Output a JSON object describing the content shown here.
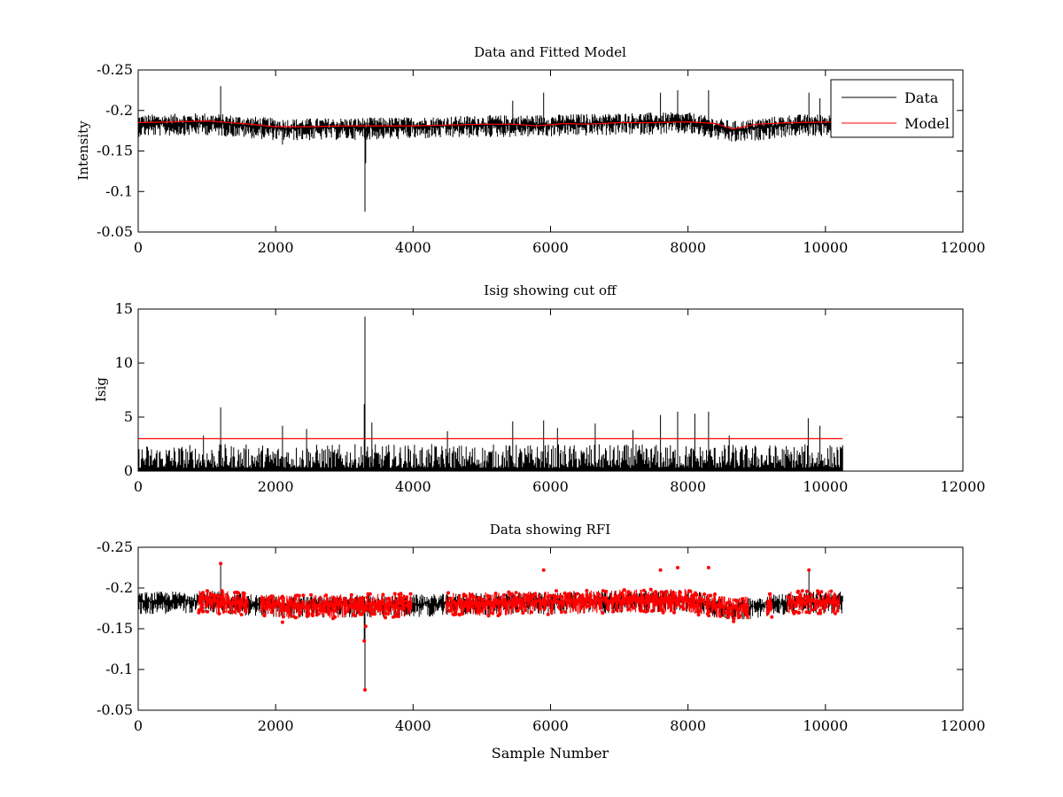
{
  "figure": {
    "background": "#ffffff",
    "data_color": "#000000",
    "highlight_color": "#ff0000"
  },
  "chart_data": [
    {
      "type": "line",
      "title": "Data and Fitted Model",
      "xlabel": "",
      "ylabel": "Intensity",
      "xlim": [
        0,
        12000
      ],
      "ylim": [
        -0.25,
        -0.05
      ],
      "y_reversed": true,
      "xticks": [
        0,
        2000,
        4000,
        6000,
        8000,
        10000,
        12000
      ],
      "yticks": [
        -0.05,
        -0.1,
        -0.15,
        -0.2,
        -0.25
      ],
      "ytick_labels": [
        "-0.05",
        "-0.1",
        "-0.15",
        "-0.2",
        "-0.25"
      ],
      "grid": false,
      "legend": {
        "position": "top-right",
        "entries": [
          "Data",
          "Model"
        ]
      },
      "series": [
        {
          "name": "Data",
          "color": "#000000",
          "x_range": [
            0,
            10250
          ],
          "baseline": [
            [
              0,
              -0.183
            ],
            [
              1000,
              -0.185
            ],
            [
              2100,
              -0.178
            ],
            [
              3000,
              -0.179
            ],
            [
              4000,
              -0.18
            ],
            [
              5000,
              -0.182
            ],
            [
              6000,
              -0.183
            ],
            [
              7000,
              -0.185
            ],
            [
              8000,
              -0.186
            ],
            [
              8650,
              -0.175
            ],
            [
              9500,
              -0.183
            ],
            [
              10250,
              -0.184
            ]
          ],
          "noise_halfwidth": 0.012,
          "spikes": [
            [
              3300,
              -0.075
            ],
            [
              3310,
              -0.135
            ],
            [
              1200,
              -0.23
            ],
            [
              5900,
              -0.222
            ],
            [
              7600,
              -0.222
            ],
            [
              7850,
              -0.225
            ],
            [
              8300,
              -0.225
            ],
            [
              9760,
              -0.222
            ],
            [
              9920,
              -0.215
            ],
            [
              5450,
              -0.212
            ],
            [
              2100,
              -0.158
            ]
          ]
        },
        {
          "name": "Model",
          "color": "#ff0000",
          "points": [
            [
              0,
              -0.185
            ],
            [
              500,
              -0.186
            ],
            [
              1000,
              -0.187
            ],
            [
              1500,
              -0.184
            ],
            [
              2000,
              -0.18
            ],
            [
              2500,
              -0.18
            ],
            [
              3000,
              -0.181
            ],
            [
              3500,
              -0.181
            ],
            [
              4000,
              -0.181
            ],
            [
              4500,
              -0.182
            ],
            [
              5000,
              -0.183
            ],
            [
              5500,
              -0.183
            ],
            [
              5800,
              -0.181
            ],
            [
              6200,
              -0.184
            ],
            [
              6500,
              -0.183
            ],
            [
              7000,
              -0.185
            ],
            [
              7500,
              -0.185
            ],
            [
              8000,
              -0.186
            ],
            [
              8400,
              -0.184
            ],
            [
              8650,
              -0.177
            ],
            [
              9000,
              -0.183
            ],
            [
              9500,
              -0.185
            ],
            [
              10250,
              -0.186
            ]
          ]
        }
      ]
    },
    {
      "type": "line",
      "title": "Isig showing cut off",
      "xlabel": "",
      "ylabel": "Isig",
      "xlim": [
        0,
        12000
      ],
      "ylim": [
        0,
        15
      ],
      "y_reversed": false,
      "xticks": [
        0,
        2000,
        4000,
        6000,
        8000,
        10000,
        12000
      ],
      "yticks": [
        0,
        5,
        10,
        15
      ],
      "ytick_labels": [
        "0",
        "5",
        "10",
        "15"
      ],
      "grid": false,
      "series": [
        {
          "color": "#000000",
          "x_range": [
            0,
            10250
          ],
          "noise_max": 2.2,
          "spikes": [
            [
              3300,
              14.3
            ],
            [
              3290,
              6.2
            ],
            [
              1200,
              5.9
            ],
            [
              2100,
              4.2
            ],
            [
              3400,
              4.5
            ],
            [
              5450,
              4.6
            ],
            [
              5900,
              4.7
            ],
            [
              6650,
              4.4
            ],
            [
              7600,
              5.2
            ],
            [
              7850,
              5.5
            ],
            [
              8100,
              5.3
            ],
            [
              8300,
              5.5
            ],
            [
              9750,
              4.9
            ],
            [
              9920,
              4.2
            ],
            [
              2450,
              3.9
            ],
            [
              4500,
              3.7
            ],
            [
              6100,
              4.0
            ],
            [
              7200,
              3.8
            ],
            [
              8600,
              3.3
            ],
            [
              950,
              3.3
            ]
          ]
        },
        {
          "name": "cut off",
          "color": "#ff0000",
          "points": [
            [
              0,
              3
            ],
            [
              10250,
              3
            ]
          ]
        }
      ]
    },
    {
      "type": "scatter",
      "title": "Data showing RFI",
      "xlabel": "Sample Number",
      "ylabel": "",
      "xlim": [
        0,
        12000
      ],
      "ylim": [
        -0.25,
        -0.05
      ],
      "y_reversed": true,
      "xticks": [
        0,
        2000,
        4000,
        6000,
        8000,
        10000,
        12000
      ],
      "yticks": [
        -0.05,
        -0.1,
        -0.15,
        -0.2,
        -0.25
      ],
      "ytick_labels": [
        "-0.05",
        "-0.1",
        "-0.15",
        "-0.2",
        "-0.25"
      ],
      "grid": false,
      "series": [
        {
          "color": "#000000",
          "x_range": [
            0,
            10250
          ],
          "baseline": [
            [
              0,
              -0.183
            ],
            [
              1000,
              -0.185
            ],
            [
              2100,
              -0.178
            ],
            [
              3000,
              -0.179
            ],
            [
              4000,
              -0.18
            ],
            [
              5000,
              -0.182
            ],
            [
              6000,
              -0.183
            ],
            [
              7000,
              -0.185
            ],
            [
              8000,
              -0.186
            ],
            [
              8650,
              -0.175
            ],
            [
              9500,
              -0.183
            ],
            [
              10250,
              -0.184
            ]
          ],
          "noise_halfwidth": 0.012,
          "spikes": [
            [
              3300,
              -0.075
            ],
            [
              3290,
              -0.135
            ],
            [
              1200,
              -0.23
            ],
            [
              9760,
              -0.222
            ]
          ]
        },
        {
          "color": "#ff0000",
          "marker": "dot",
          "flagged_ranges": [
            [
              880,
              1600
            ],
            [
              1780,
              3980
            ],
            [
              4480,
              8880
            ],
            [
              9150,
              9220
            ],
            [
              9450,
              10200
            ]
          ],
          "points": [
            [
              3300,
              -0.075
            ],
            [
              3290,
              -0.135
            ],
            [
              3310,
              -0.153
            ],
            [
              1200,
              -0.23
            ],
            [
              5900,
              -0.222
            ],
            [
              7600,
              -0.222
            ],
            [
              7850,
              -0.225
            ],
            [
              8300,
              -0.225
            ],
            [
              9760,
              -0.222
            ],
            [
              2100,
              -0.158
            ]
          ]
        }
      ]
    }
  ]
}
